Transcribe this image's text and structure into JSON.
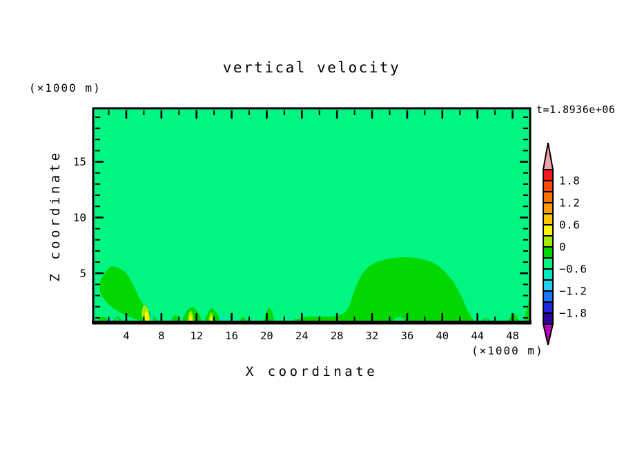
{
  "title": "vertical velocity",
  "time_label": "t=1.8936e+06",
  "x_axis": {
    "label": "X coordinate",
    "unit_label": "(×1000 m)",
    "min": 0.23,
    "max": 50.0,
    "minor_step": 2,
    "ticks": [
      4,
      8,
      12,
      16,
      20,
      24,
      28,
      32,
      36,
      40,
      44,
      48
    ]
  },
  "z_axis": {
    "label": "Z coordinate",
    "unit_label": "(×1000 m)",
    "min": 0.5,
    "max": 19.8,
    "minor_step": 1,
    "ticks": [
      5,
      10,
      15
    ]
  },
  "colorbar": {
    "labels": [
      "1.8",
      "1.2",
      "0.6",
      "0",
      "−0.6",
      "−1.2",
      "−1.8"
    ],
    "band_width": 0.3,
    "top_value": 2.1,
    "colors": [
      "#f8161f",
      "#fc4a0a",
      "#fe7300",
      "#ff9d00",
      "#ffc800",
      "#fcf400",
      "#a2ea00",
      "#00d800",
      "#00f583",
      "#00e7c4",
      "#26cdf2",
      "#1b75ff",
      "#1b2ae0",
      "#33019c"
    ],
    "arrow_top_color": "#f4a3ac",
    "arrow_bottom_color": "#b800c4",
    "outline_color": "#000000"
  },
  "chart_data": {
    "type": "heatmap",
    "subtype": "filled-contour",
    "title": "vertical velocity",
    "xlabel": "X coordinate (×1000 m)",
    "ylabel": "Z coordinate (×1000 m)",
    "time_annotation": "t=1.8936e+06",
    "xlim": [
      0.2,
      50.0
    ],
    "ylim": [
      0.5,
      19.8
    ],
    "x_major_ticks": [
      4,
      8,
      12,
      16,
      20,
      24,
      28,
      32,
      36,
      40,
      44,
      48
    ],
    "z_major_ticks": [
      5,
      10,
      15
    ],
    "contour_interval": 0.3,
    "value_range_shown": [
      -2.1,
      2.1
    ],
    "labeled_levels": [
      1.8,
      1.2,
      0.6,
      0,
      -0.6,
      -1.2,
      -1.8
    ],
    "background_field": "uniform value between -0.3 and 0 (spring green) over nearly the whole domain",
    "features": [
      {
        "name": "large updraft dome",
        "x_range": [
          23,
          44
        ],
        "z_top": 6.3,
        "value_range": [
          0,
          0.3
        ],
        "note": "broad dome centered near x=36 with tiny background-value hole near x=34.5, z=0.6"
      },
      {
        "name": "tilted updraft plume",
        "x_range": [
          1,
          7.5
        ],
        "z_top": 5.7,
        "value_range": [
          0,
          0.3
        ],
        "note": "comma-shaped plume leaning down-right; core near x=6 reaches 0.3-0.6 (chartreuse) and 0.6-0.9 (yellow)"
      },
      {
        "name": "surface cell",
        "x": 9.6,
        "z_top": 1.2,
        "value_range": [
          0,
          0.3
        ]
      },
      {
        "name": "surface cell with warm core",
        "x": 11.5,
        "z_top": 1.6,
        "value_range": [
          0,
          0.9
        ],
        "note": "chartreuse and yellow core at base"
      },
      {
        "name": "surface cell with warm core",
        "x": 13.8,
        "z_top": 1.5,
        "value_range": [
          0,
          0.9
        ]
      },
      {
        "name": "surface cell",
        "x": 17.3,
        "z_top": 1.1,
        "value_range": [
          0,
          0.3
        ]
      },
      {
        "name": "surface cell",
        "x": 20.3,
        "z_top": 1.9,
        "value_range": [
          0,
          0.3
        ]
      },
      {
        "name": "surface cells",
        "x": 1.0,
        "z_top": 1.1,
        "value_range": [
          0,
          0.3
        ]
      },
      {
        "name": "surface cells",
        "x": 2.7,
        "z_top": 1.1,
        "value_range": [
          0,
          0.3
        ]
      },
      {
        "name": "surface speck",
        "x": 23.2,
        "z_top": 0.9,
        "value_range": [
          0,
          0.3
        ]
      },
      {
        "name": "surface cell",
        "x": 45.0,
        "z_top": 1.0,
        "value_range": [
          0,
          0.3
        ]
      },
      {
        "name": "right-edge updraft wedge",
        "x_range": [
          47.3,
          50
        ],
        "z_top": 2.9,
        "value_range": [
          0,
          0.3
        ]
      },
      {
        "name": "downdraft slivers",
        "x_values": [
          2.2,
          2.9,
          6.8,
          14.8,
          15.6,
          16.2,
          16.7,
          45.1,
          49.2
        ],
        "z_top": 1.0,
        "value_range": [
          -0.6,
          -0.3
        ],
        "note": "thin turquoise streaks at the surface"
      }
    ]
  }
}
